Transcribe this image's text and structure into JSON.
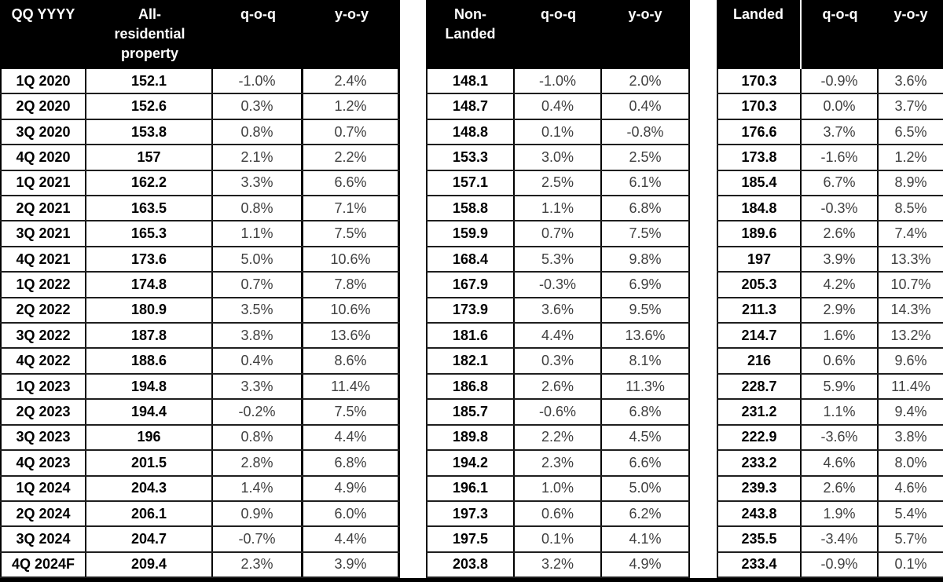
{
  "chart_data": {
    "type": "table",
    "quarters": [
      "1Q 2020",
      "2Q 2020",
      "3Q 2020",
      "4Q 2020",
      "1Q 2021",
      "2Q 2021",
      "3Q 2021",
      "4Q 2021",
      "1Q 2022",
      "2Q 2022",
      "3Q 2022",
      "4Q 2022",
      "1Q 2023",
      "2Q 2023",
      "3Q 2023",
      "4Q 2023",
      "1Q 2024",
      "2Q 2024",
      "3Q 2024",
      "4Q 2024F"
    ],
    "sections": [
      {
        "quarter_header": "QQ YYYY",
        "name": "All-residential property",
        "col_qoq": "q-o-q",
        "col_yoy": "y-o-y",
        "rows": [
          {
            "value": "152.1",
            "qoq": "-1.0%",
            "yoy": "2.4%"
          },
          {
            "value": "152.6",
            "qoq": "0.3%",
            "yoy": "1.2%"
          },
          {
            "value": "153.8",
            "qoq": "0.8%",
            "yoy": "0.7%"
          },
          {
            "value": "157",
            "qoq": "2.1%",
            "yoy": "2.2%"
          },
          {
            "value": "162.2",
            "qoq": "3.3%",
            "yoy": "6.6%"
          },
          {
            "value": "163.5",
            "qoq": "0.8%",
            "yoy": "7.1%"
          },
          {
            "value": "165.3",
            "qoq": "1.1%",
            "yoy": "7.5%"
          },
          {
            "value": "173.6",
            "qoq": "5.0%",
            "yoy": "10.6%"
          },
          {
            "value": "174.8",
            "qoq": "0.7%",
            "yoy": "7.8%"
          },
          {
            "value": "180.9",
            "qoq": "3.5%",
            "yoy": "10.6%"
          },
          {
            "value": "187.8",
            "qoq": "3.8%",
            "yoy": "13.6%"
          },
          {
            "value": "188.6",
            "qoq": "0.4%",
            "yoy": "8.6%"
          },
          {
            "value": "194.8",
            "qoq": "3.3%",
            "yoy": "11.4%"
          },
          {
            "value": "194.4",
            "qoq": "-0.2%",
            "yoy": "7.5%"
          },
          {
            "value": "196",
            "qoq": "0.8%",
            "yoy": "4.4%"
          },
          {
            "value": "201.5",
            "qoq": "2.8%",
            "yoy": "6.8%"
          },
          {
            "value": "204.3",
            "qoq": "1.4%",
            "yoy": "4.9%"
          },
          {
            "value": "206.1",
            "qoq": "0.9%",
            "yoy": "6.0%"
          },
          {
            "value": "204.7",
            "qoq": "-0.7%",
            "yoy": "4.4%"
          },
          {
            "value": "209.4",
            "qoq": "2.3%",
            "yoy": "3.9%"
          }
        ]
      },
      {
        "name": "Non-Landed",
        "col_qoq": "q-o-q",
        "col_yoy": "y-o-y",
        "rows": [
          {
            "value": "148.1",
            "qoq": "-1.0%",
            "yoy": "2.0%"
          },
          {
            "value": "148.7",
            "qoq": "0.4%",
            "yoy": "0.4%"
          },
          {
            "value": "148.8",
            "qoq": "0.1%",
            "yoy": "-0.8%"
          },
          {
            "value": "153.3",
            "qoq": "3.0%",
            "yoy": "2.5%"
          },
          {
            "value": "157.1",
            "qoq": "2.5%",
            "yoy": "6.1%"
          },
          {
            "value": "158.8",
            "qoq": "1.1%",
            "yoy": "6.8%"
          },
          {
            "value": "159.9",
            "qoq": "0.7%",
            "yoy": "7.5%"
          },
          {
            "value": "168.4",
            "qoq": "5.3%",
            "yoy": "9.8%"
          },
          {
            "value": "167.9",
            "qoq": "-0.3%",
            "yoy": "6.9%"
          },
          {
            "value": "173.9",
            "qoq": "3.6%",
            "yoy": "9.5%"
          },
          {
            "value": "181.6",
            "qoq": "4.4%",
            "yoy": "13.6%"
          },
          {
            "value": "182.1",
            "qoq": "0.3%",
            "yoy": "8.1%"
          },
          {
            "value": "186.8",
            "qoq": "2.6%",
            "yoy": "11.3%"
          },
          {
            "value": "185.7",
            "qoq": "-0.6%",
            "yoy": "6.8%"
          },
          {
            "value": "189.8",
            "qoq": "2.2%",
            "yoy": "4.5%"
          },
          {
            "value": "194.2",
            "qoq": "2.3%",
            "yoy": "6.6%"
          },
          {
            "value": "196.1",
            "qoq": "1.0%",
            "yoy": "5.0%"
          },
          {
            "value": "197.3",
            "qoq": "0.6%",
            "yoy": "6.2%"
          },
          {
            "value": "197.5",
            "qoq": "0.1%",
            "yoy": "4.1%"
          },
          {
            "value": "203.8",
            "qoq": "3.2%",
            "yoy": "4.9%"
          }
        ]
      },
      {
        "name": "Landed",
        "col_qoq": "q-o-q",
        "col_yoy": "y-o-y",
        "rows": [
          {
            "value": "170.3",
            "qoq": "-0.9%",
            "yoy": "3.6%"
          },
          {
            "value": "170.3",
            "qoq": "0.0%",
            "yoy": "3.7%"
          },
          {
            "value": "176.6",
            "qoq": "3.7%",
            "yoy": "6.5%"
          },
          {
            "value": "173.8",
            "qoq": "-1.6%",
            "yoy": "1.2%"
          },
          {
            "value": "185.4",
            "qoq": "6.7%",
            "yoy": "8.9%"
          },
          {
            "value": "184.8",
            "qoq": "-0.3%",
            "yoy": "8.5%"
          },
          {
            "value": "189.6",
            "qoq": "2.6%",
            "yoy": "7.4%"
          },
          {
            "value": "197",
            "qoq": "3.9%",
            "yoy": "13.3%"
          },
          {
            "value": "205.3",
            "qoq": "4.2%",
            "yoy": "10.7%"
          },
          {
            "value": "211.3",
            "qoq": "2.9%",
            "yoy": "14.3%"
          },
          {
            "value": "214.7",
            "qoq": "1.6%",
            "yoy": "13.2%"
          },
          {
            "value": "216",
            "qoq": "0.6%",
            "yoy": "9.6%"
          },
          {
            "value": "228.7",
            "qoq": "5.9%",
            "yoy": "11.4%"
          },
          {
            "value": "231.2",
            "qoq": "1.1%",
            "yoy": "9.4%"
          },
          {
            "value": "222.9",
            "qoq": "-3.6%",
            "yoy": "3.8%"
          },
          {
            "value": "233.2",
            "qoq": "4.6%",
            "yoy": "8.0%"
          },
          {
            "value": "239.3",
            "qoq": "2.6%",
            "yoy": "4.6%"
          },
          {
            "value": "243.8",
            "qoq": "1.9%",
            "yoy": "5.4%"
          },
          {
            "value": "235.5",
            "qoq": "-3.4%",
            "yoy": "5.7%"
          },
          {
            "value": "233.4",
            "qoq": "-0.9%",
            "yoy": "0.1%"
          }
        ]
      }
    ],
    "colors": {
      "header_bg": "#000000",
      "header_text": "#ffffff",
      "value_text": "#000000",
      "percent_text": "#404040",
      "grid_line": "#1f1f1f"
    }
  }
}
